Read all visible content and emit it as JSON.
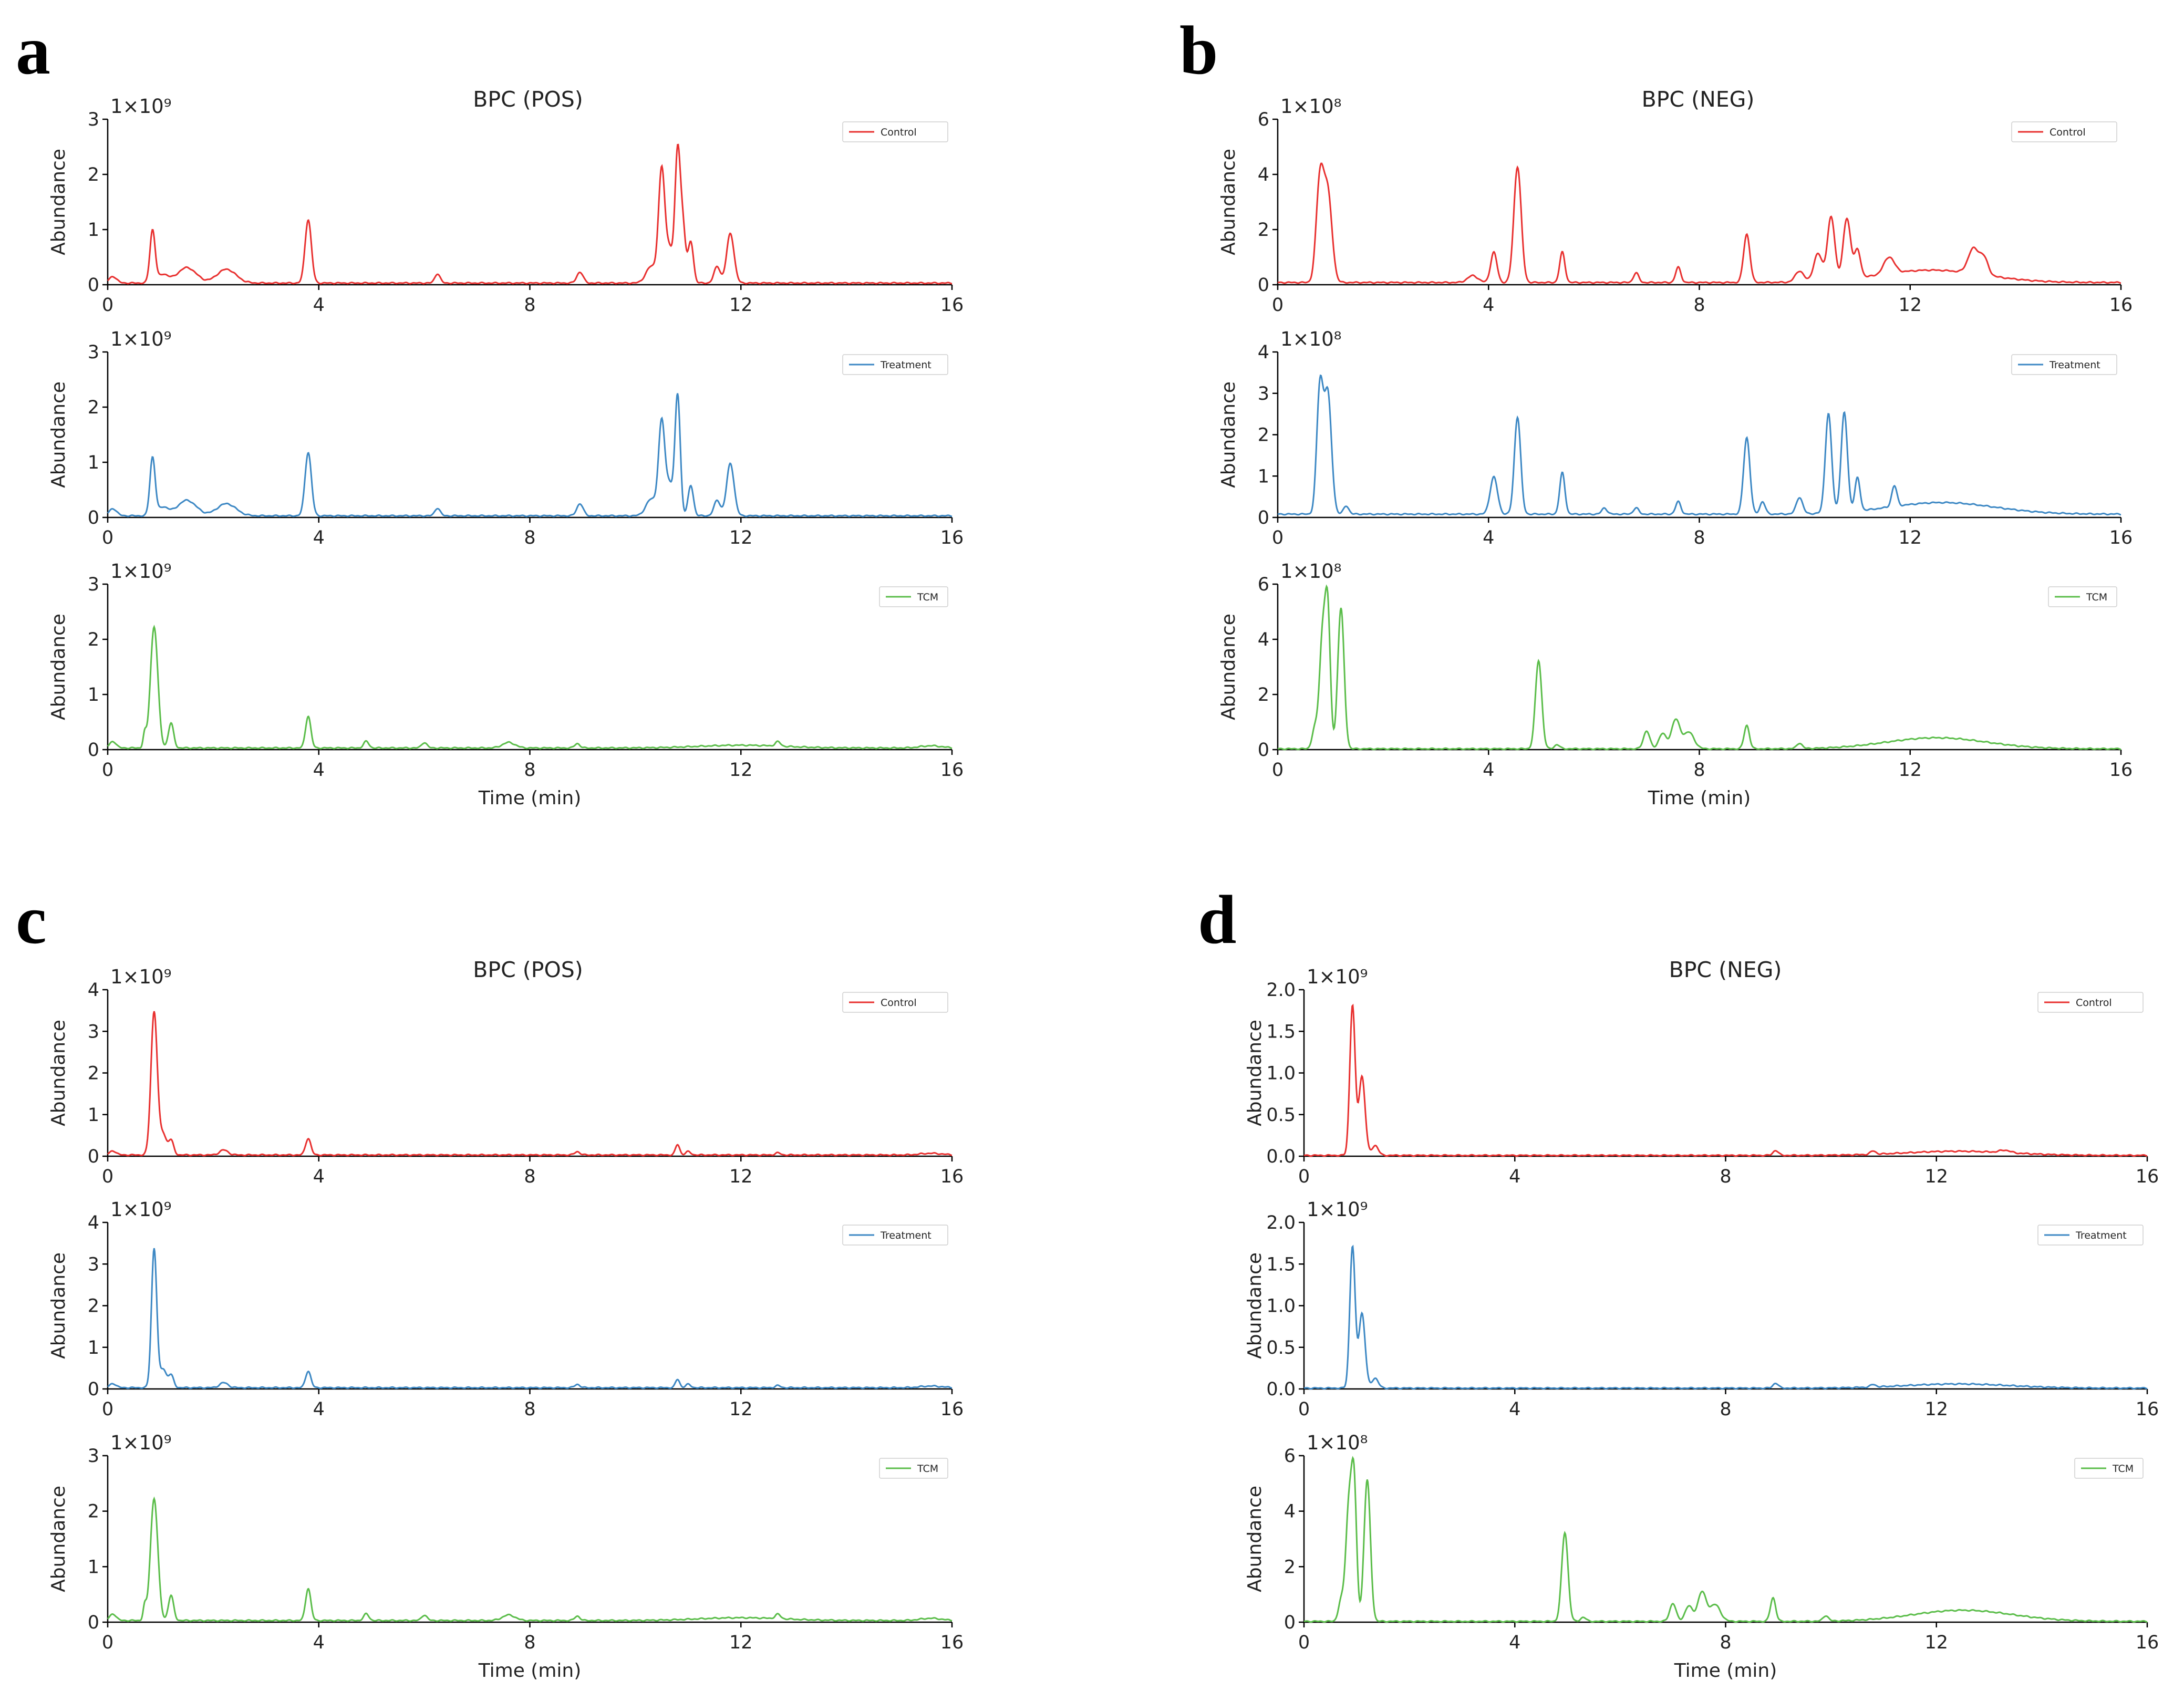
{
  "colors": {
    "control": "#e8302f",
    "treatment": "#3d88c4",
    "tcm": "#5bbd4a"
  },
  "chart_data": [
    {
      "panel": "a",
      "title": "BPC (POS)",
      "xlabel": "Time (min)",
      "xlim": [
        0,
        16
      ],
      "xticks": [
        "0",
        "4",
        "8",
        "12",
        "16"
      ],
      "subplots": [
        {
          "series": "Control",
          "color": "control",
          "ylabel": "Abundance",
          "multiplier": "1×10⁹",
          "ylim": [
            0,
            3
          ],
          "yticks": [
            "0",
            "1",
            "2",
            "3"
          ],
          "baseline": 0.03,
          "peaks": [
            [
              0.1,
              0.12,
              0.07
            ],
            [
              0.85,
              0.95,
              0.05
            ],
            [
              1.05,
              0.15,
              0.1
            ],
            [
              1.5,
              0.28,
              0.18
            ],
            [
              2.25,
              0.25,
              0.18
            ],
            [
              3.8,
              1.15,
              0.06
            ],
            [
              6.25,
              0.17,
              0.05
            ],
            [
              8.95,
              0.2,
              0.06
            ],
            [
              10.3,
              0.3,
              0.1
            ],
            [
              10.5,
              2.05,
              0.06
            ],
            [
              10.65,
              0.6,
              0.06
            ],
            [
              10.8,
              2.35,
              0.05
            ],
            [
              10.9,
              1.0,
              0.05
            ],
            [
              11.05,
              0.75,
              0.05
            ],
            [
              11.55,
              0.3,
              0.06
            ],
            [
              11.8,
              0.9,
              0.07
            ]
          ]
        },
        {
          "series": "Treatment",
          "color": "treatment",
          "ylabel": "Abundance",
          "multiplier": "1×10⁹",
          "ylim": [
            0,
            3
          ],
          "yticks": [
            "0",
            "1",
            "2",
            "3"
          ],
          "baseline": 0.03,
          "peaks": [
            [
              0.1,
              0.13,
              0.07
            ],
            [
              0.85,
              1.05,
              0.05
            ],
            [
              1.05,
              0.15,
              0.1
            ],
            [
              1.5,
              0.28,
              0.18
            ],
            [
              2.25,
              0.22,
              0.18
            ],
            [
              3.8,
              1.15,
              0.06
            ],
            [
              6.25,
              0.14,
              0.05
            ],
            [
              8.95,
              0.22,
              0.06
            ],
            [
              10.3,
              0.3,
              0.1
            ],
            [
              10.5,
              1.7,
              0.06
            ],
            [
              10.65,
              0.55,
              0.06
            ],
            [
              10.8,
              2.2,
              0.05
            ],
            [
              11.05,
              0.55,
              0.05
            ],
            [
              11.55,
              0.28,
              0.06
            ],
            [
              11.8,
              0.95,
              0.07
            ]
          ]
        },
        {
          "series": "TCM",
          "color": "tcm",
          "ylabel": "Abundance",
          "multiplier": "1×10⁹",
          "ylim": [
            0,
            3
          ],
          "yticks": [
            "0",
            "1",
            "2",
            "3"
          ],
          "baseline": 0.03,
          "peaks": [
            [
              0.1,
              0.12,
              0.06
            ],
            [
              0.7,
              0.25,
              0.03
            ],
            [
              0.88,
              2.2,
              0.07
            ],
            [
              1.2,
              0.45,
              0.05
            ],
            [
              3.8,
              0.58,
              0.05
            ],
            [
              4.9,
              0.12,
              0.05
            ],
            [
              6.0,
              0.1,
              0.05
            ],
            [
              7.6,
              0.1,
              0.12
            ],
            [
              8.9,
              0.08,
              0.05
            ],
            [
              12.0,
              0.05,
              0.8
            ],
            [
              12.7,
              0.08,
              0.05
            ],
            [
              15.6,
              0.04,
              0.2
            ]
          ]
        }
      ]
    },
    {
      "panel": "b",
      "title": "BPC (NEG)",
      "xlabel": "Time (min)",
      "xlim": [
        0,
        16
      ],
      "xticks": [
        "0",
        "4",
        "8",
        "12",
        "16"
      ],
      "subplots": [
        {
          "series": "Control",
          "color": "control",
          "ylabel": "Abundance",
          "multiplier": "1×10⁸",
          "ylim": [
            0,
            6
          ],
          "yticks": [
            "0",
            "2",
            "4",
            "6"
          ],
          "baseline": 0.08,
          "peaks": [
            [
              0.8,
              3.6,
              0.07
            ],
            [
              0.95,
              3.2,
              0.08
            ],
            [
              3.7,
              0.25,
              0.1
            ],
            [
              4.1,
              1.1,
              0.06
            ],
            [
              4.55,
              4.2,
              0.07
            ],
            [
              5.4,
              1.1,
              0.05
            ],
            [
              6.8,
              0.35,
              0.05
            ],
            [
              7.6,
              0.55,
              0.05
            ],
            [
              8.9,
              1.75,
              0.06
            ],
            [
              9.9,
              0.4,
              0.08
            ],
            [
              10.25,
              1.0,
              0.08
            ],
            [
              10.5,
              2.3,
              0.07
            ],
            [
              10.8,
              2.2,
              0.07
            ],
            [
              11.0,
              1.0,
              0.06
            ],
            [
              11.6,
              0.6,
              0.1
            ],
            [
              12.4,
              0.45,
              1.0
            ],
            [
              13.2,
              0.9,
              0.1
            ],
            [
              13.4,
              0.6,
              0.08
            ]
          ]
        },
        {
          "series": "Treatment",
          "color": "treatment",
          "ylabel": "Abundance",
          "multiplier": "1×10⁸",
          "ylim": [
            0,
            4
          ],
          "yticks": [
            "0",
            "1",
            "2",
            "3",
            "4"
          ],
          "baseline": 0.08,
          "peaks": [
            [
              0.8,
              3.0,
              0.06
            ],
            [
              0.95,
              2.9,
              0.07
            ],
            [
              1.3,
              0.2,
              0.05
            ],
            [
              4.1,
              0.9,
              0.07
            ],
            [
              4.55,
              2.35,
              0.06
            ],
            [
              5.4,
              1.0,
              0.05
            ],
            [
              6.2,
              0.15,
              0.05
            ],
            [
              6.8,
              0.15,
              0.05
            ],
            [
              7.6,
              0.3,
              0.05
            ],
            [
              8.9,
              1.85,
              0.06
            ],
            [
              9.2,
              0.3,
              0.05
            ],
            [
              9.9,
              0.4,
              0.06
            ],
            [
              10.45,
              2.4,
              0.06
            ],
            [
              10.75,
              2.4,
              0.06
            ],
            [
              11.0,
              0.8,
              0.05
            ],
            [
              11.7,
              0.5,
              0.05
            ],
            [
              12.6,
              0.28,
              1.0
            ]
          ]
        },
        {
          "series": "TCM",
          "color": "tcm",
          "ylabel": "Abundance",
          "multiplier": "1×10⁸",
          "ylim": [
            0,
            6
          ],
          "yticks": [
            "0",
            "2",
            "4",
            "6"
          ],
          "baseline": 0.03,
          "peaks": [
            [
              0.7,
              0.7,
              0.05
            ],
            [
              0.85,
              4.0,
              0.06
            ],
            [
              0.95,
              4.6,
              0.05
            ],
            [
              1.2,
              5.1,
              0.06
            ],
            [
              4.95,
              3.2,
              0.06
            ],
            [
              5.3,
              0.15,
              0.05
            ],
            [
              7.0,
              0.65,
              0.06
            ],
            [
              7.3,
              0.55,
              0.07
            ],
            [
              7.55,
              1.05,
              0.08
            ],
            [
              7.8,
              0.6,
              0.1
            ],
            [
              8.9,
              0.85,
              0.05
            ],
            [
              9.9,
              0.2,
              0.05
            ],
            [
              12.5,
              0.4,
              0.95
            ]
          ]
        }
      ]
    },
    {
      "panel": "c",
      "title": "BPC (POS)",
      "xlabel": "Time (min)",
      "xlim": [
        0,
        16
      ],
      "xticks": [
        "0",
        "4",
        "8",
        "12",
        "16"
      ],
      "subplots": [
        {
          "series": "Control",
          "color": "control",
          "ylabel": "Abundance",
          "multiplier": "1×10⁹",
          "ylim": [
            0,
            4
          ],
          "yticks": [
            "0",
            "1",
            "2",
            "3",
            "4"
          ],
          "baseline": 0.03,
          "peaks": [
            [
              0.1,
              0.1,
              0.06
            ],
            [
              0.88,
              3.45,
              0.06
            ],
            [
              1.05,
              0.5,
              0.06
            ],
            [
              1.2,
              0.35,
              0.05
            ],
            [
              2.2,
              0.12,
              0.08
            ],
            [
              3.8,
              0.4,
              0.05
            ],
            [
              8.9,
              0.08,
              0.05
            ],
            [
              10.8,
              0.25,
              0.04
            ],
            [
              11.0,
              0.08,
              0.05
            ],
            [
              12.7,
              0.05,
              0.05
            ],
            [
              15.6,
              0.04,
              0.2
            ]
          ]
        },
        {
          "series": "Treatment",
          "color": "treatment",
          "ylabel": "Abundance",
          "multiplier": "1×10⁹",
          "ylim": [
            0,
            4
          ],
          "yticks": [
            "0",
            "1",
            "2",
            "3",
            "4"
          ],
          "baseline": 0.03,
          "peaks": [
            [
              0.1,
              0.1,
              0.06
            ],
            [
              0.88,
              3.35,
              0.05
            ],
            [
              1.05,
              0.45,
              0.06
            ],
            [
              1.2,
              0.3,
              0.05
            ],
            [
              2.2,
              0.12,
              0.08
            ],
            [
              3.8,
              0.4,
              0.05
            ],
            [
              8.9,
              0.08,
              0.05
            ],
            [
              10.8,
              0.2,
              0.04
            ],
            [
              11.0,
              0.08,
              0.05
            ],
            [
              12.7,
              0.05,
              0.05
            ],
            [
              15.6,
              0.04,
              0.2
            ]
          ]
        },
        {
          "series": "TCM",
          "color": "tcm",
          "ylabel": "Abundance",
          "multiplier": "1×10⁹",
          "ylim": [
            0,
            3
          ],
          "yticks": [
            "0",
            "1",
            "2",
            "3"
          ],
          "baseline": 0.03,
          "peaks": [
            [
              0.1,
              0.12,
              0.06
            ],
            [
              0.7,
              0.25,
              0.03
            ],
            [
              0.88,
              2.2,
              0.07
            ],
            [
              1.2,
              0.45,
              0.05
            ],
            [
              3.8,
              0.58,
              0.05
            ],
            [
              4.9,
              0.12,
              0.05
            ],
            [
              6.0,
              0.1,
              0.05
            ],
            [
              7.6,
              0.1,
              0.12
            ],
            [
              8.9,
              0.08,
              0.05
            ],
            [
              12.0,
              0.05,
              0.8
            ],
            [
              12.7,
              0.08,
              0.05
            ],
            [
              15.6,
              0.04,
              0.2
            ]
          ]
        }
      ]
    },
    {
      "panel": "d",
      "title": "BPC (NEG)",
      "xlabel": "Time (min)",
      "xlim": [
        0,
        16
      ],
      "xticks": [
        "0",
        "4",
        "8",
        "12",
        "16"
      ],
      "subplots": [
        {
          "series": "Control",
          "color": "control",
          "ylabel": "Abundance",
          "multiplier": "1×10⁹",
          "ylim": [
            0,
            2.0
          ],
          "yticks": [
            "0.0",
            "0.5",
            "1.0",
            "1.5",
            "2.0"
          ],
          "baseline": 0.01,
          "peaks": [
            [
              0.92,
              1.8,
              0.05
            ],
            [
              1.1,
              0.95,
              0.06
            ],
            [
              1.35,
              0.12,
              0.06
            ],
            [
              8.95,
              0.06,
              0.05
            ],
            [
              10.8,
              0.04,
              0.05
            ],
            [
              12.4,
              0.05,
              1.0
            ],
            [
              13.3,
              0.03,
              0.1
            ]
          ]
        },
        {
          "series": "Treatment",
          "color": "treatment",
          "ylabel": "Abundance",
          "multiplier": "1×10⁹",
          "ylim": [
            0,
            2.0
          ],
          "yticks": [
            "0.0",
            "0.5",
            "1.0",
            "1.5",
            "2.0"
          ],
          "baseline": 0.01,
          "peaks": [
            [
              0.92,
              1.7,
              0.05
            ],
            [
              1.1,
              0.9,
              0.06
            ],
            [
              1.35,
              0.12,
              0.06
            ],
            [
              8.95,
              0.06,
              0.05
            ],
            [
              10.8,
              0.03,
              0.05
            ],
            [
              12.4,
              0.05,
              1.0
            ]
          ]
        },
        {
          "series": "TCM",
          "color": "tcm",
          "ylabel": "Abundance",
          "multiplier": "1×10⁸",
          "ylim": [
            0,
            6
          ],
          "yticks": [
            "0",
            "2",
            "4",
            "6"
          ],
          "baseline": 0.03,
          "peaks": [
            [
              0.7,
              0.7,
              0.05
            ],
            [
              0.85,
              4.0,
              0.06
            ],
            [
              0.95,
              4.6,
              0.05
            ],
            [
              1.2,
              5.1,
              0.06
            ],
            [
              4.95,
              3.2,
              0.06
            ],
            [
              5.3,
              0.15,
              0.05
            ],
            [
              7.0,
              0.65,
              0.06
            ],
            [
              7.3,
              0.55,
              0.07
            ],
            [
              7.55,
              1.05,
              0.08
            ],
            [
              7.8,
              0.6,
              0.1
            ],
            [
              8.9,
              0.85,
              0.05
            ],
            [
              9.9,
              0.2,
              0.05
            ],
            [
              12.5,
              0.4,
              0.95
            ]
          ]
        }
      ]
    }
  ]
}
